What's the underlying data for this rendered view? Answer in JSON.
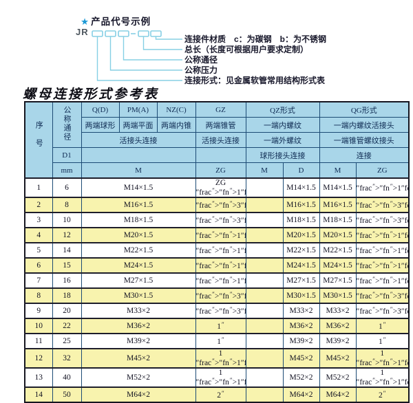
{
  "diagram": {
    "star": "★",
    "heading": "产品代号示例",
    "code_prefix": "JR",
    "labels": [
      "连接件材质　c：为碳钢　b：为不锈钢",
      "总长（长度可根据用户要求定制）",
      "公称通径",
      "公称压力",
      "连接形式：见金属软管常用结构形式表"
    ]
  },
  "table": {
    "title": "螺母连接形式参考表",
    "header": {
      "serial": "序号",
      "nominal_diameter": "公称通径",
      "d1": "D1",
      "mm": "mm",
      "col_q": "Q(D)",
      "col_pm": "PM(A)",
      "col_nz": "NZ(C)",
      "col_gz": "GZ",
      "col_qz": "QZ形式",
      "col_qg": "QG形式",
      "sub_q": "两端球形",
      "sub_pm": "两端平面",
      "sub_nz": "两端内锥",
      "sub_gz": "两端锥管",
      "sub_qz": "一端内螺纹",
      "sub_qg": "一端内螺纹活接头",
      "row3_left": "活接头连接",
      "row3_gz": "活接头连接",
      "row3_qz": "一端外螺纹",
      "row3_qg": "一端锥管螺纹接头",
      "row4_qz": "球形接头连接",
      "row4_qg": "连接",
      "unit_m": "M",
      "unit_zg": "ZG",
      "unit_qz_m": "M",
      "unit_qz_d": "D",
      "unit_qg_m": "M",
      "unit_qg_zg": "ZG"
    },
    "rows": [
      {
        "no": "1",
        "dn": "6",
        "m": "M14×1.5",
        "zg": "ZG 1/4\"",
        "qz_m": "",
        "qz_d": "M14×1.5",
        "qg_m": "M14×1.5",
        "qg_zg": "1/4\""
      },
      {
        "no": "2",
        "dn": "8",
        "m": "M16×1.5",
        "zg": "3/8\"",
        "qz_m": "",
        "qz_d": "M16×1.5",
        "qg_m": "M16×1.5",
        "qg_zg": "3/8\""
      },
      {
        "no": "3",
        "dn": "10",
        "m": "M18×1.5",
        "zg": "3/8\"",
        "qz_m": "",
        "qz_d": "M18×1.5",
        "qg_m": "M18×1.5",
        "qg_zg": "3/8\""
      },
      {
        "no": "4",
        "dn": "12",
        "m": "M20×1.5",
        "zg": "1/2\"",
        "qz_m": "",
        "qz_d": "M20×1.5",
        "qg_m": "M20×1.5",
        "qg_zg": "1/2\""
      },
      {
        "no": "5",
        "dn": "14",
        "m": "M22×1.5",
        "zg": "1/2\"",
        "qz_m": "",
        "qz_d": "M22×1.5",
        "qg_m": "M22×1.5",
        "qg_zg": "1/2\""
      },
      {
        "no": "6",
        "dn": "15",
        "m": "M24×1.5",
        "zg": "1/2\"",
        "qz_m": "",
        "qz_d": "M24×1.5",
        "qg_m": "M24×1.5",
        "qg_zg": "1/2\""
      },
      {
        "no": "7",
        "dn": "16",
        "m": "M27×1.5",
        "zg": "1/2\"",
        "qz_m": "",
        "qz_d": "M27×1.5",
        "qg_m": "M27×1.5",
        "qg_zg": "1/2\""
      },
      {
        "no": "8",
        "dn": "18",
        "m": "M30×1.5",
        "zg": "3/4\"",
        "qz_m": "",
        "qz_d": "M30×1.5",
        "qg_m": "M30×1.5",
        "qg_zg": "3/4\""
      },
      {
        "no": "9",
        "dn": "20",
        "m": "M33×2",
        "zg": "3/4\"",
        "qz_m": "",
        "qz_d": "M33×2",
        "qg_m": "M33×2",
        "qg_zg": "3/4\""
      },
      {
        "no": "10",
        "dn": "22",
        "m": "M36×2",
        "zg": "1\"",
        "qz_m": "",
        "qz_d": "M36×2",
        "qg_m": "M36×2",
        "qg_zg": "1\""
      },
      {
        "no": "11",
        "dn": "25",
        "m": "M39×2",
        "zg": "1\"",
        "qz_m": "",
        "qz_d": "M39×2",
        "qg_m": "M39×2",
        "qg_zg": "1\""
      },
      {
        "no": "12",
        "dn": "32",
        "m": "M45×2",
        "zg": "1 1/4\"",
        "qz_m": "",
        "qz_d": "M45×2",
        "qg_m": "M45×2",
        "qg_zg": "1 1/4\""
      },
      {
        "no": "13",
        "dn": "40",
        "m": "M52×2",
        "zg": "1 1/2\"",
        "qz_m": "",
        "qz_d": "M52×2",
        "qg_m": "M52×2",
        "qg_zg": "1 1/2\""
      },
      {
        "no": "14",
        "dn": "50",
        "m": "M64×2",
        "zg": "2\"",
        "qz_m": "",
        "qz_d": "M64×2",
        "qg_m": "M64×2",
        "qg_zg": "2\""
      }
    ]
  },
  "colors": {
    "header_blue": "#a9d6e9",
    "row_yellow": "#f8f3ae",
    "diagram_line_blue": "#85cfe4",
    "star_blue": "#1e9ad6",
    "grid_navy": "#1b4a74"
  }
}
